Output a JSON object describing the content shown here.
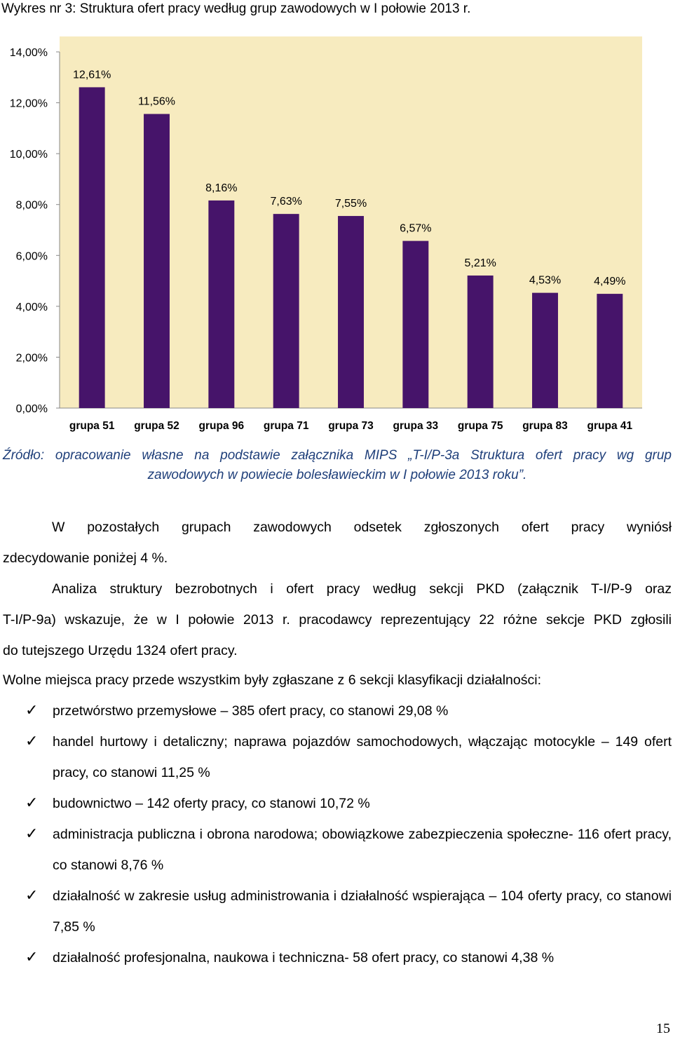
{
  "chart_title": "Wykres nr 3: Struktura ofert pracy według grup zawodowych w I połowie 2013 r.",
  "colors": {
    "bar": "#46146a",
    "plot_bg": "#f7ebbf",
    "axis": "#888888"
  },
  "chart_data": {
    "type": "bar",
    "categories": [
      "grupa 51",
      "grupa 52",
      "grupa 96",
      "grupa 71",
      "grupa 73",
      "grupa 33",
      "grupa 75",
      "grupa 83",
      "grupa 41"
    ],
    "values": [
      12.61,
      11.56,
      8.16,
      7.63,
      7.55,
      6.57,
      5.21,
      4.53,
      4.49
    ],
    "value_labels": [
      "12,61%",
      "11,56%",
      "8,16%",
      "7,63%",
      "7,55%",
      "6,57%",
      "5,21%",
      "4,53%",
      "4,49%"
    ],
    "yticks": [
      "0,00%",
      "2,00%",
      "4,00%",
      "6,00%",
      "8,00%",
      "10,00%",
      "12,00%",
      "14,00%"
    ],
    "ylim": [
      0,
      14
    ],
    "grid": false,
    "legend": "none"
  },
  "source_line1": "Źródło: opracowanie własne na podstawie załącznika MIPS „T-I/P-3a Struktura ofert pracy wg grup",
  "source_line2": "zawodowych w  powiecie bolesławieckim w I połowie 2013 roku”.",
  "p1_first": "W pozostałych grupach zawodowych odsetek zgłoszonych ofert pracy wyniósł",
  "p1_rest": "zdecydowanie poniżej 4 %.",
  "p2_l1": "Analiza struktury bezrobotnych i ofert pracy według sekcji PKD (załącznik T-I/P-9 oraz",
  "p2_l2": "T-I/P-9a) wskazuje, że w I połowie 2013 r. pracodawcy reprezentujący 22 różne sekcje PKD zgłosili",
  "p2_l3": "do tutejszego Urzędu 1324 ofert pracy.",
  "p3": "Wolne miejsca pracy przede wszystkim były zgłaszane z 6 sekcji klasyfikacji działalności:",
  "list": [
    "przetwórstwo przemysłowe – 385 ofert pracy, co stanowi 29,08 %",
    "handel hurtowy i detaliczny; naprawa pojazdów samochodowych, włączając motocykle – 149 ofert pracy, co stanowi 11,25 %",
    "budownictwo – 142 oferty pracy, co stanowi  10,72 %",
    "administracja publiczna i obrona narodowa; obowiązkowe zabezpieczenia społeczne- 116 ofert pracy, co stanowi 8,76 %",
    "działalność w zakresie usług administrowania i działalność wspierająca – 104 oferty pracy, co stanowi 7,85 %",
    "działalność profesjonalna, naukowa i techniczna- 58 ofert pracy, co stanowi 4,38 %"
  ],
  "check_glyph": "✓",
  "page_number": "15"
}
